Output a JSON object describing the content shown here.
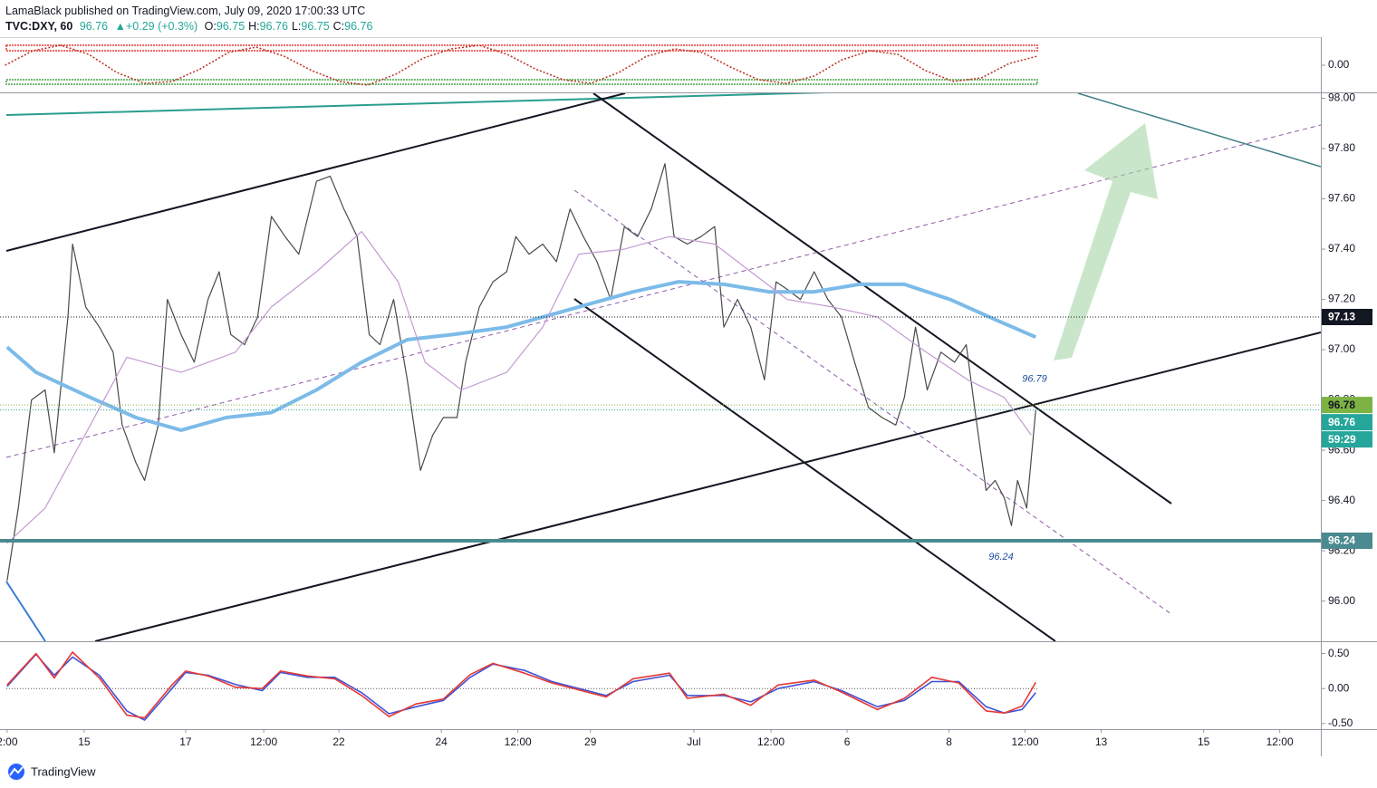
{
  "header": {
    "author_line": "LamaBlack published on TradingView.com, July 09, 2020 17:00:33 UTC",
    "symbol": "TVC:DXY, 60",
    "last": "96.76",
    "change": "▲+0.29 (+0.3%)",
    "ohlc": [
      {
        "label": "O:",
        "value": "96.75"
      },
      {
        "label": "H:",
        "value": "96.76"
      },
      {
        "label": "L:",
        "value": "96.75"
      },
      {
        "label": "C:",
        "value": "96.76"
      }
    ]
  },
  "footer": {
    "brand": "TradingView"
  },
  "chart_data": [
    {
      "type": "line",
      "xlim": [
        0,
        26.04
      ],
      "ylim": [
        95.84,
        98.02
      ],
      "yticks": [
        {
          "value": 96,
          "label": "96.00"
        },
        {
          "value": 96.2,
          "label": "96.20"
        },
        {
          "value": 96.4,
          "label": "96.40"
        },
        {
          "value": 96.6,
          "label": "96.60"
        },
        {
          "value": 96.8,
          "label": "96.80"
        },
        {
          "value": 97,
          "label": "97.00"
        },
        {
          "value": 97.2,
          "label": "97.20"
        },
        {
          "value": 97.4,
          "label": "97.40"
        },
        {
          "value": 97.6,
          "label": "97.60"
        },
        {
          "value": 97.8,
          "label": "97.80"
        },
        {
          "value": 98,
          "label": "98.00"
        }
      ],
      "xticks": [
        {
          "value": 0.14,
          "label": "2:00"
        },
        {
          "value": 1.66,
          "label": "15"
        },
        {
          "value": 3.66,
          "label": "17"
        },
        {
          "value": 5.2,
          "label": "12:00"
        },
        {
          "value": 6.68,
          "label": "22"
        },
        {
          "value": 8.7,
          "label": "24"
        },
        {
          "value": 10.21,
          "label": "12:00"
        },
        {
          "value": 11.64,
          "label": "29"
        },
        {
          "value": 13.68,
          "label": "Jul"
        },
        {
          "value": 15.2,
          "label": "12:00"
        },
        {
          "value": 16.7,
          "label": "6"
        },
        {
          "value": 18.71,
          "label": "8"
        },
        {
          "value": 20.21,
          "label": "12:00"
        },
        {
          "value": 21.71,
          "label": "13"
        },
        {
          "value": 23.73,
          "label": "15"
        },
        {
          "value": 25.23,
          "label": "12:00"
        }
      ],
      "series": [
        {
          "color": "#4a4a4a",
          "width": 1.2,
          "x": [
            0.14,
            0.36,
            0.62,
            0.89,
            1.07,
            1.34,
            1.43,
            1.69,
            1.96,
            2.23,
            2.41,
            2.68,
            2.85,
            3.12,
            3.3,
            3.57,
            3.83,
            4.1,
            4.32,
            4.55,
            4.82,
            5.08,
            5.35,
            5.62,
            5.89,
            6.24,
            6.51,
            6.78,
            7.04,
            7.28,
            7.49,
            7.76,
            8.03,
            8.29,
            8.53,
            8.74,
            9.01,
            9.18,
            9.45,
            9.72,
            9.99,
            10.17,
            10.43,
            10.7,
            10.97,
            11.24,
            11.5,
            11.77,
            12.04,
            12.31,
            12.57,
            12.84,
            13.11,
            13.29,
            13.55,
            13.82,
            14.09,
            14.27,
            14.54,
            14.8,
            15.07,
            15.3,
            15.52,
            15.78,
            16.05,
            16.32,
            16.59,
            16.85,
            17.12,
            17.39,
            17.66,
            17.83,
            18.05,
            18.28,
            18.55,
            18.82,
            19.05,
            19.26,
            19.44,
            19.62,
            19.8,
            19.94,
            20.06,
            20.24,
            20.42
          ],
          "values": [
            96.08,
            96.37,
            96.8,
            96.84,
            96.59,
            97.13,
            97.42,
            97.17,
            97.09,
            96.99,
            96.7,
            96.55,
            96.48,
            96.7,
            97.2,
            97.06,
            96.95,
            97.2,
            97.31,
            97.06,
            97.02,
            97.13,
            97.53,
            97.45,
            97.38,
            97.67,
            97.69,
            97.56,
            97.45,
            97.06,
            97.02,
            97.2,
            96.88,
            96.52,
            96.66,
            96.73,
            96.73,
            96.95,
            97.17,
            97.27,
            97.31,
            97.45,
            97.38,
            97.42,
            97.35,
            97.56,
            97.45,
            97.35,
            97.2,
            97.49,
            97.45,
            97.56,
            97.74,
            97.45,
            97.42,
            97.45,
            97.49,
            97.09,
            97.2,
            97.09,
            96.88,
            97.27,
            97.24,
            97.2,
            97.31,
            97.2,
            97.13,
            96.95,
            96.77,
            96.73,
            96.7,
            96.81,
            97.09,
            96.84,
            96.99,
            96.95,
            97.02,
            96.7,
            96.44,
            96.48,
            96.41,
            96.3,
            96.48,
            96.37,
            96.76
          ]
        },
        {
          "color": "#7cbbe9",
          "width": 4,
          "x": [
            0.14,
            0.71,
            1.78,
            2.68,
            3.57,
            4.46,
            5.35,
            6.24,
            7.13,
            8.03,
            8.92,
            9.99,
            11.06,
            11.59,
            12.48,
            13.38,
            14.27,
            15.16,
            16.05,
            16.94,
            17.83,
            18.73,
            19.62,
            20.42
          ],
          "values": [
            97.01,
            96.91,
            96.81,
            96.73,
            96.68,
            96.73,
            96.75,
            96.84,
            96.95,
            97.04,
            97.06,
            97.09,
            97.15,
            97.18,
            97.23,
            97.27,
            97.26,
            97.23,
            97.23,
            97.26,
            97.26,
            97.2,
            97.12,
            97.05
          ]
        },
        {
          "color": "#c39bd3",
          "width": 1.2,
          "x": [
            0.14,
            0.89,
            1.78,
            2.5,
            3.57,
            4.64,
            5.35,
            6.24,
            7.13,
            7.85,
            8.38,
            9.1,
            9.99,
            10.7,
            11.41,
            12.31,
            13.2,
            14.09,
            14.8,
            15.52,
            16.41,
            17.3,
            18.19,
            19.08,
            19.8,
            20.33
          ],
          "values": [
            96.23,
            96.37,
            96.7,
            96.97,
            96.91,
            96.99,
            97.17,
            97.31,
            97.47,
            97.27,
            96.95,
            96.84,
            96.91,
            97.09,
            97.38,
            97.4,
            97.45,
            97.42,
            97.31,
            97.2,
            97.17,
            97.13,
            97.0,
            96.88,
            96.81,
            96.66
          ]
        }
      ],
      "levels": [
        {
          "value": 97.13,
          "label": "97.13",
          "color": "#131722",
          "text_color": "#ffffff",
          "line": "dotted"
        },
        {
          "value": 96.78,
          "label": "96.78",
          "color": "#7cb342",
          "text_color": "#131722",
          "line": "dotted"
        },
        {
          "value": 96.76,
          "label": "96.76",
          "color": "#26a69a",
          "text_color": "#ffffff",
          "line": "dotted",
          "countdown": "59:29"
        },
        {
          "value": 96.24,
          "label": "96.24",
          "color": "#4a8a90",
          "text_color": "#ffffff",
          "line": "thick"
        }
      ],
      "annotations": [
        {
          "value": 96.79,
          "label": "96.79"
        },
        {
          "value": 96.24,
          "label": "96.24"
        }
      ]
    },
    {
      "type": "line",
      "xlim": [
        0,
        26.04
      ],
      "ylim": [
        -1.5,
        1.5
      ],
      "yticks": [
        {
          "value": 0,
          "label": "0.00"
        }
      ],
      "series": [
        {
          "color": "#c0392b",
          "width": 1.6,
          "dash": "2 2",
          "x": [
            0.1,
            0.65,
            1.2,
            1.75,
            2.3,
            2.85,
            3.4,
            3.95,
            4.5,
            5.05,
            5.6,
            6.15,
            6.7,
            7.25,
            7.8,
            8.35,
            8.9,
            9.45,
            10.0,
            10.55,
            11.1,
            11.65,
            12.2,
            12.75,
            13.3,
            13.85,
            14.4,
            14.95,
            15.5,
            16.05,
            16.6,
            17.15,
            17.7,
            18.25,
            18.8,
            19.35,
            19.9,
            20.45
          ],
          "values": [
            0,
            0.8,
            1.1,
            0.6,
            -0.4,
            -1.0,
            -0.9,
            -0.2,
            0.7,
            1.0,
            0.5,
            -0.3,
            -0.9,
            -1.1,
            -0.5,
            0.4,
            0.9,
            1.1,
            0.6,
            -0.2,
            -0.8,
            -1.0,
            -0.4,
            0.5,
            0.9,
            0.7,
            -0.1,
            -0.8,
            -1.0,
            -0.6,
            0.3,
            0.8,
            0.6,
            -0.3,
            -0.9,
            -0.7,
            0.1,
            0.5
          ]
        }
      ]
    },
    {
      "type": "line",
      "xlim": [
        0,
        26.04
      ],
      "ylim": [
        -0.58,
        0.65
      ],
      "yticks": [
        {
          "value": 0.5,
          "label": "0.50"
        },
        {
          "value": 0,
          "label": "0.00"
        },
        {
          "value": -0.5,
          "label": "-0.50"
        }
      ],
      "series": [
        {
          "color": "#3f51d6",
          "width": 1.6,
          "x": [
            0.14,
            0.71,
            1.07,
            1.43,
            1.96,
            2.5,
            2.85,
            3.39,
            3.66,
            4.1,
            4.64,
            5.17,
            5.53,
            6.06,
            6.6,
            7.13,
            7.67,
            8.2,
            8.74,
            9.27,
            9.72,
            10.34,
            10.88,
            11.41,
            11.95,
            12.48,
            13.2,
            13.55,
            14.27,
            14.8,
            15.34,
            16.05,
            16.59,
            17.3,
            17.83,
            18.37,
            18.9,
            19.44,
            19.8,
            20.15,
            20.42
          ],
          "values": [
            0.03,
            0.49,
            0.19,
            0.45,
            0.19,
            -0.32,
            -0.45,
            0,
            0.23,
            0.19,
            0.06,
            -0.03,
            0.23,
            0.16,
            0.16,
            -0.06,
            -0.36,
            -0.26,
            -0.17,
            0.16,
            0.35,
            0.26,
            0.1,
            0,
            -0.1,
            0.1,
            0.19,
            -0.1,
            -0.1,
            -0.19,
            0,
            0.1,
            -0.03,
            -0.26,
            -0.17,
            0.1,
            0.1,
            -0.26,
            -0.35,
            -0.3,
            -0.06
          ]
        },
        {
          "color": "#e53935",
          "width": 1.6,
          "x": [
            0.14,
            0.71,
            1.07,
            1.43,
            1.96,
            2.5,
            2.85,
            3.39,
            3.66,
            4.1,
            4.64,
            5.17,
            5.53,
            6.06,
            6.6,
            7.13,
            7.67,
            8.2,
            8.74,
            9.27,
            9.72,
            10.34,
            10.88,
            11.41,
            11.95,
            12.48,
            13.2,
            13.55,
            14.27,
            14.8,
            15.34,
            16.05,
            16.59,
            17.3,
            17.83,
            18.37,
            18.9,
            19.44,
            19.8,
            20.15,
            20.42
          ],
          "values": [
            0.05,
            0.5,
            0.15,
            0.52,
            0.15,
            -0.38,
            -0.42,
            0.05,
            0.25,
            0.18,
            0.02,
            0,
            0.25,
            0.18,
            0.14,
            -0.1,
            -0.4,
            -0.22,
            -0.15,
            0.2,
            0.36,
            0.22,
            0.08,
            -0.02,
            -0.12,
            0.14,
            0.22,
            -0.14,
            -0.08,
            -0.24,
            0.05,
            0.12,
            -0.05,
            -0.3,
            -0.14,
            0.16,
            0.08,
            -0.32,
            -0.35,
            -0.25,
            0.09
          ]
        }
      ]
    }
  ]
}
